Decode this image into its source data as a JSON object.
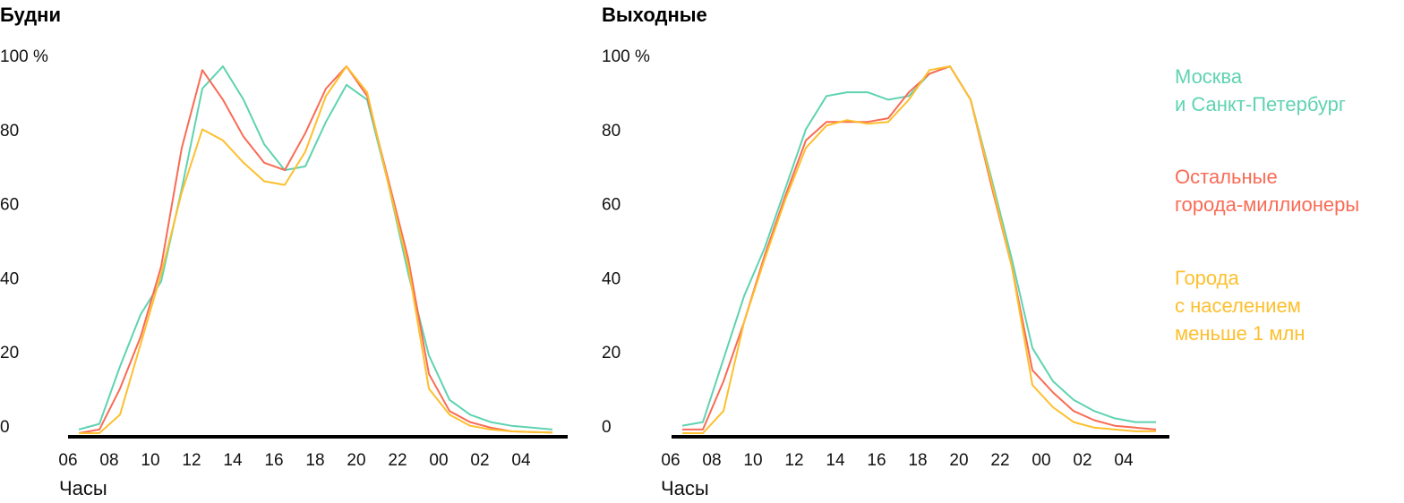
{
  "legend": [
    {
      "lines": [
        "Москва",
        "и Санкт-Петербург"
      ],
      "color": "#5fd3b1"
    },
    {
      "lines": [
        "Остальные",
        "города-миллионеры"
      ],
      "color": "#f96b55"
    },
    {
      "lines": [
        "Города",
        "с населением",
        "меньше 1 млн"
      ],
      "color": "#fdbf2d"
    }
  ],
  "chart_data": [
    {
      "type": "line",
      "title": "Будни",
      "xlabel": "Часы",
      "ylabel": "",
      "ylim": [
        0,
        100
      ],
      "ytick_labels": [
        "100 %",
        "80",
        "60",
        "40",
        "20",
        "0"
      ],
      "xtick_labels": [
        "06",
        "08",
        "10",
        "12",
        "14",
        "16",
        "18",
        "20",
        "22",
        "00",
        "02",
        "04"
      ],
      "x": [
        "06:30",
        "07:30",
        "08:30",
        "09:30",
        "10:30",
        "11:30",
        "12:30",
        "13:30",
        "14:30",
        "15:30",
        "16:30",
        "17:30",
        "18:30",
        "19:30",
        "20:30",
        "21:30",
        "22:30",
        "23:30",
        "00:30",
        "01:30",
        "02:30",
        "03:30",
        "04:30",
        "05:30"
      ],
      "series": [
        {
          "name": "Москва и Санкт-Петербург",
          "color": "#5fd3b1",
          "values": [
            1,
            2.5,
            18,
            32,
            41,
            66,
            93,
            99,
            90,
            78,
            71,
            72,
            84,
            94,
            90,
            68,
            43,
            21,
            9,
            5,
            3,
            2,
            1.5,
            1
          ]
        },
        {
          "name": "Остальные города-миллионеры",
          "color": "#f96b55",
          "values": [
            0,
            1,
            12,
            26,
            45,
            77,
            98,
            90,
            80,
            73,
            71,
            81,
            93,
            99,
            91,
            69,
            47,
            16,
            6,
            3,
            1.5,
            0.5,
            0.3,
            0.2
          ]
        },
        {
          "name": "Города с населением меньше 1 млн",
          "color": "#fdbf2d",
          "values": [
            0,
            0,
            5,
            24,
            43,
            65,
            82,
            79,
            73,
            68,
            67,
            76,
            91,
            99,
            92,
            68,
            45,
            12,
            5,
            2,
            1,
            0.5,
            0.3,
            0.2
          ]
        }
      ]
    },
    {
      "type": "line",
      "title": "Выходные",
      "xlabel": "Часы",
      "ylabel": "",
      "ylim": [
        0,
        100
      ],
      "ytick_labels": [
        "100 %",
        "80",
        "60",
        "40",
        "20",
        "0"
      ],
      "xtick_labels": [
        "06",
        "08",
        "10",
        "12",
        "14",
        "16",
        "18",
        "20",
        "22",
        "00",
        "02",
        "04"
      ],
      "x": [
        "06:30",
        "07:30",
        "08:30",
        "09:30",
        "10:30",
        "11:30",
        "12:30",
        "13:30",
        "14:30",
        "15:30",
        "16:30",
        "17:30",
        "18:30",
        "19:30",
        "20:30",
        "21:30",
        "22:30",
        "23:30",
        "00:30",
        "01:30",
        "02:30",
        "03:30",
        "04:30",
        "05:30"
      ],
      "series": [
        {
          "name": "Москва и Санкт-Петербург",
          "color": "#5fd3b1",
          "values": [
            2,
            3,
            20,
            37,
            50,
            66,
            82,
            91,
            92,
            92,
            90,
            91,
            97,
            99,
            90,
            69,
            47,
            23,
            14,
            9,
            6,
            4,
            3,
            3
          ]
        },
        {
          "name": "Остальные города-миллионеры",
          "color": "#f96b55",
          "values": [
            1,
            1,
            14,
            30,
            48,
            64,
            79,
            84,
            84,
            84,
            85,
            92,
            97,
            99,
            90,
            67,
            45,
            17,
            11,
            6,
            3.5,
            2,
            1.5,
            1
          ]
        },
        {
          "name": "Города с населением меньше 1 млн",
          "color": "#fdbf2d",
          "values": [
            0,
            0,
            6,
            30,
            47,
            63,
            77,
            83,
            84.5,
            83.5,
            84,
            90,
            98,
            99,
            90,
            68,
            45,
            13,
            7,
            3,
            1.5,
            1,
            0.5,
            0.5
          ]
        }
      ]
    }
  ]
}
